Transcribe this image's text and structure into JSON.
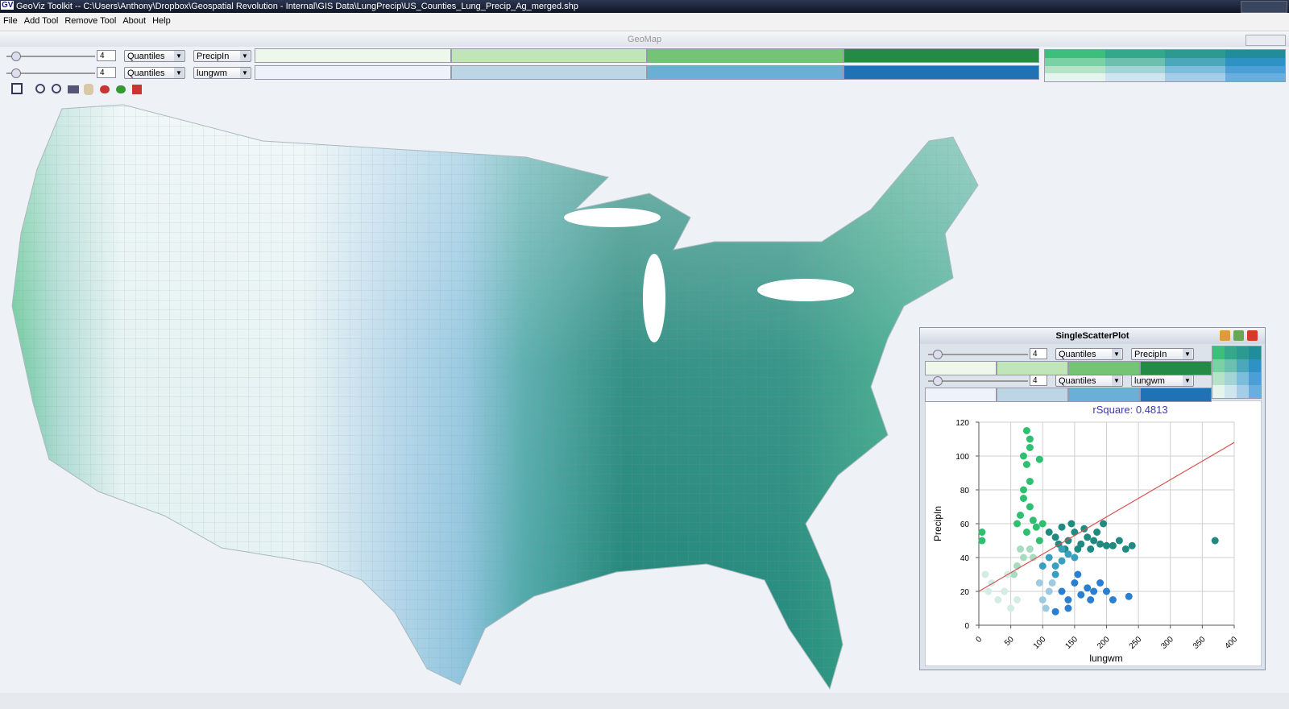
{
  "window": {
    "icon": "GV",
    "title": "GeoViz Toolkit -- C:\\Users\\Anthony\\Dropbox\\Geospatial Revolution - Internal\\GIS Data\\LungPrecip\\US_Counties_Lung_Precip_Ag_merged.shp"
  },
  "menu": [
    "File",
    "Add Tool",
    "Remove Tool",
    "About",
    "Help"
  ],
  "geomap": {
    "title": "GeoMap",
    "controls": [
      {
        "classes": 4,
        "method": "Quantiles",
        "variable": "PrecipIn"
      },
      {
        "classes": 4,
        "method": "Quantiles",
        "variable": "lungwm"
      }
    ]
  },
  "scatter_window": {
    "title": "SingleScatterPlot",
    "controls": [
      {
        "classes": 4,
        "method": "Quantiles",
        "variable": "PrecipIn"
      },
      {
        "classes": 4,
        "method": "Quantiles",
        "variable": "lungwm"
      }
    ]
  },
  "chart_data": {
    "type": "scatter",
    "title": "rSquare: 0.4813",
    "x_label": "lungwm",
    "y_label": "PrecipIn",
    "xlim": [
      0,
      400
    ],
    "ylim": [
      0,
      120
    ],
    "xticks": [
      0,
      50,
      100,
      150,
      200,
      250,
      300,
      350,
      400
    ],
    "yticks": [
      0,
      20,
      40,
      60,
      80,
      100,
      120
    ],
    "grid": true,
    "trend_line": {
      "color": "#d9534f",
      "x": [
        0,
        400
      ],
      "y": [
        20,
        108
      ]
    },
    "series": [
      {
        "color": "#1f8a80",
        "x": [
          110,
          120,
          130,
          140,
          150,
          160,
          170,
          180,
          190,
          200,
          210,
          145,
          135,
          165,
          155,
          125,
          370,
          240,
          230,
          220,
          175,
          185,
          195
        ],
        "y": [
          55,
          52,
          58,
          50,
          55,
          48,
          52,
          50,
          48,
          47,
          47,
          60,
          45,
          57,
          45,
          48,
          50,
          47,
          45,
          50,
          45,
          55,
          60
        ]
      },
      {
        "color": "#2fbf71",
        "x": [
          75,
          80,
          80,
          70,
          95,
          75,
          70,
          80,
          65,
          60,
          75,
          85,
          90,
          5,
          5,
          95,
          100,
          70,
          80
        ],
        "y": [
          115,
          110,
          105,
          100,
          98,
          95,
          75,
          70,
          65,
          60,
          55,
          62,
          58,
          55,
          50,
          50,
          60,
          80,
          85
        ]
      },
      {
        "color": "#3a9fbf",
        "x": [
          110,
          120,
          130,
          140,
          120,
          100,
          130,
          150
        ],
        "y": [
          40,
          35,
          38,
          42,
          30,
          35,
          45,
          40
        ]
      },
      {
        "color": "#2b7fd0",
        "x": [
          130,
          140,
          150,
          160,
          170,
          180,
          200,
          210,
          235,
          140,
          120,
          155,
          190,
          175
        ],
        "y": [
          20,
          15,
          25,
          18,
          22,
          20,
          20,
          15,
          17,
          10,
          8,
          30,
          25,
          15
        ]
      },
      {
        "color": "#9ecae1",
        "x": [
          100,
          110,
          105,
          115,
          95
        ],
        "y": [
          15,
          20,
          10,
          25,
          25
        ]
      },
      {
        "color": "#a8dcc0",
        "x": [
          60,
          70,
          80,
          55,
          65,
          85
        ],
        "y": [
          35,
          40,
          45,
          30,
          45,
          40
        ]
      },
      {
        "color": "#d5ece6",
        "x": [
          10,
          20,
          40,
          30,
          50,
          60,
          15,
          45
        ],
        "y": [
          30,
          25,
          20,
          15,
          10,
          15,
          20,
          30
        ]
      }
    ]
  }
}
